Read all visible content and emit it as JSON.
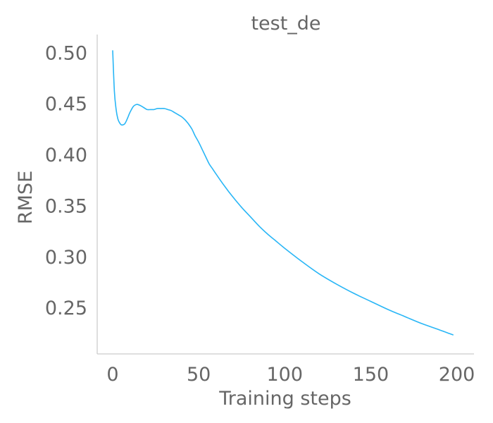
{
  "chart_data": {
    "type": "line",
    "title": "test_de",
    "xlabel": "Training steps",
    "ylabel": "RMSE",
    "xlim": [
      -9,
      210
    ],
    "ylim": [
      0.2045,
      0.5175
    ],
    "xticks": [
      0,
      50,
      100,
      150,
      200
    ],
    "xtick_labels": [
      "0",
      "50",
      "100",
      "150",
      "200"
    ],
    "yticks": [
      0.25,
      0.3,
      0.35,
      0.4,
      0.45,
      0.5
    ],
    "ytick_labels": [
      "0.25",
      "0.30",
      "0.35",
      "0.40",
      "0.45",
      "0.50"
    ],
    "grid": false,
    "line_color": "#29b6f6",
    "axis_color": "#cccccc",
    "text_color": "#666666",
    "series": [
      {
        "x": [
          0,
          1,
          2,
          3,
          4,
          5,
          6,
          7,
          8,
          9,
          10,
          12,
          14,
          16,
          18,
          20,
          22,
          24,
          26,
          28,
          30,
          32,
          34,
          36,
          38,
          40,
          42,
          44,
          46,
          48,
          50,
          52,
          54,
          56,
          58,
          60,
          65,
          70,
          75,
          80,
          85,
          90,
          95,
          100,
          110,
          120,
          130,
          140,
          150,
          160,
          170,
          180,
          190,
          198
        ],
        "y": [
          0.502,
          0.462,
          0.444,
          0.435,
          0.431,
          0.429,
          0.429,
          0.43,
          0.433,
          0.437,
          0.441,
          0.447,
          0.449,
          0.448,
          0.446,
          0.444,
          0.444,
          0.444,
          0.445,
          0.445,
          0.445,
          0.444,
          0.443,
          0.441,
          0.439,
          0.437,
          0.434,
          0.43,
          0.425,
          0.418,
          0.412,
          0.405,
          0.398,
          0.391,
          0.386,
          0.381,
          0.369,
          0.358,
          0.348,
          0.339,
          0.33,
          0.322,
          0.315,
          0.308,
          0.295,
          0.283,
          0.273,
          0.264,
          0.256,
          0.248,
          0.241,
          0.234,
          0.228,
          0.223
        ]
      }
    ]
  }
}
